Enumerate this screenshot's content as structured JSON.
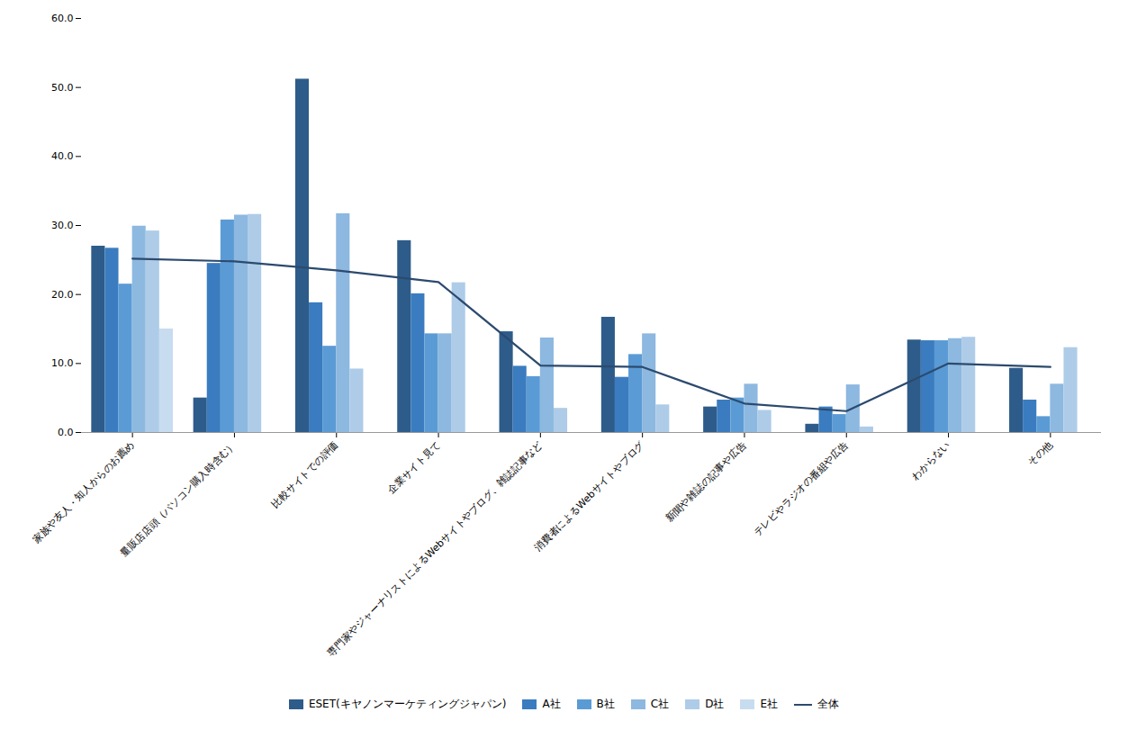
{
  "chart_data": {
    "type": "bar",
    "categories": [
      "家族や友人・知人からのお薦め",
      "量販店店頭（パソコン購入時含む）",
      "比較サイトでの評価",
      "企業サイト見て",
      "専門家やジャーナリストによるWebサイトやブログ、雑誌記事など",
      "消費者によるWebサイトやブログ",
      "新聞や雑誌の記事や広告",
      "テレビやラジオの番組や広告",
      "わからない",
      "その他"
    ],
    "series": [
      {
        "name": "ESET(キヤノンマーケティングジャパン)",
        "type": "bar",
        "color": "#2E5C8A",
        "values": [
          27.0,
          5.0,
          51.2,
          27.8,
          14.6,
          16.7,
          3.7,
          1.2,
          13.4,
          9.3
        ]
      },
      {
        "name": "A社",
        "type": "bar",
        "color": "#3A7CBF",
        "values": [
          26.7,
          24.5,
          18.8,
          20.1,
          9.6,
          8.0,
          4.7,
          3.7,
          13.3,
          4.7
        ]
      },
      {
        "name": "B社",
        "type": "bar",
        "color": "#5B9BD5",
        "values": [
          21.5,
          30.8,
          12.5,
          14.3,
          8.1,
          11.3,
          5.0,
          2.6,
          13.3,
          2.3
        ]
      },
      {
        "name": "C社",
        "type": "bar",
        "color": "#8DB8E0",
        "values": [
          29.9,
          31.5,
          31.7,
          14.3,
          13.7,
          14.3,
          7.0,
          6.9,
          13.6,
          7.0
        ]
      },
      {
        "name": "D社",
        "type": "bar",
        "color": "#AECCE8",
        "values": [
          29.2,
          31.6,
          9.2,
          21.7,
          3.5,
          4.0,
          3.2,
          0.8,
          13.8,
          12.3
        ]
      },
      {
        "name": "E社",
        "type": "bar",
        "color": "#C8DCF0",
        "values": [
          15.0,
          0.0,
          0.0,
          0.0,
          0.0,
          0.0,
          0.0,
          0.0,
          0.0,
          0.0
        ]
      },
      {
        "name": "全体",
        "type": "line",
        "color": "#2C4A6E",
        "values": [
          25.2,
          24.8,
          23.5,
          21.8,
          9.7,
          9.5,
          4.2,
          3.1,
          10.0,
          9.5
        ]
      }
    ],
    "ylim": [
      0,
      60
    ],
    "yticks": [
      {
        "value": 0,
        "label": "0.0"
      },
      {
        "value": 10,
        "label": "10.0"
      },
      {
        "value": 20,
        "label": "20.0"
      },
      {
        "value": 30,
        "label": "30.0"
      },
      {
        "value": 40,
        "label": "40.0"
      },
      {
        "value": 50,
        "label": "50.0"
      },
      {
        "value": 60,
        "label": "60.0"
      }
    ],
    "grid": false,
    "legend": "bottom"
  }
}
